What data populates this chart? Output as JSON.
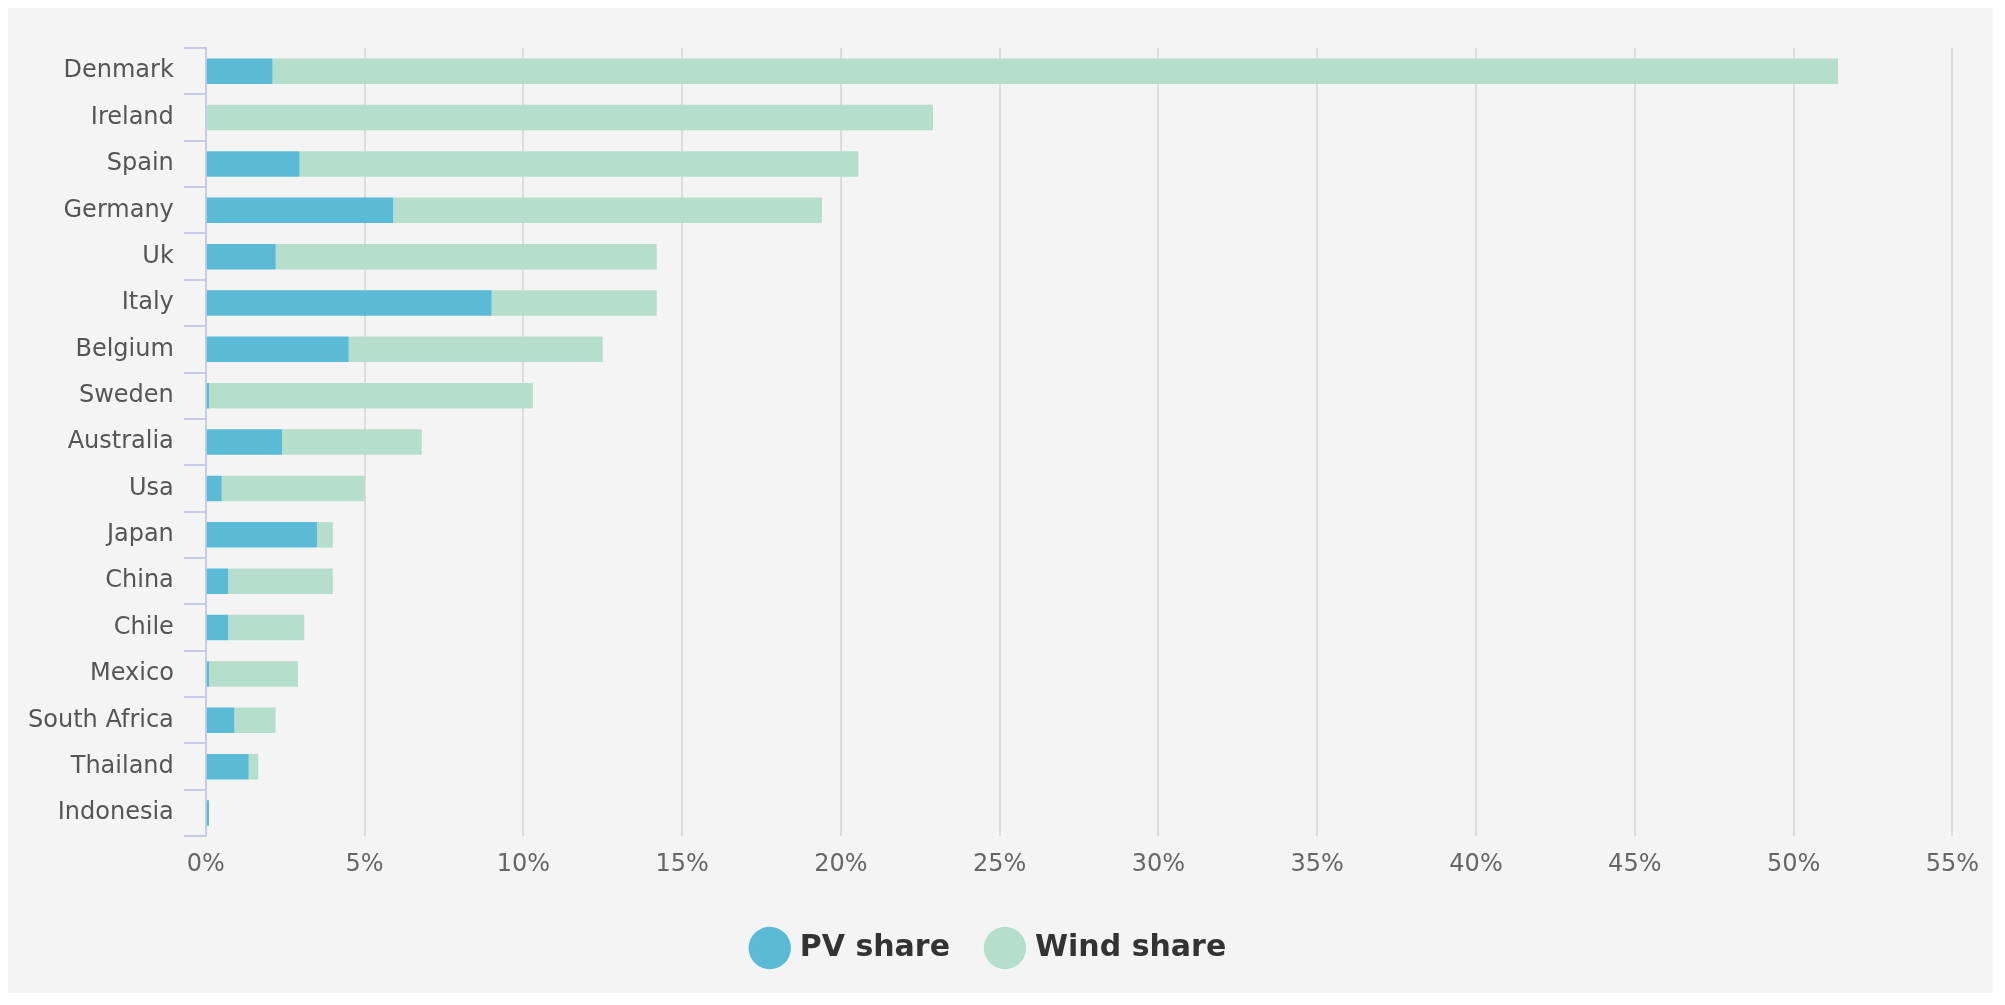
{
  "chart_data": {
    "type": "bar",
    "orientation": "horizontal",
    "stacked": true,
    "categories": [
      "Denmark",
      "Ireland",
      "Spain",
      "Germany",
      "Uk",
      "Italy",
      "Belgium",
      "Sweden",
      "Australia",
      "Usa",
      "Japan",
      "China",
      "Chile",
      "Mexico",
      "South Africa",
      "Thailand",
      "Indonesia"
    ],
    "series": [
      {
        "name": "PV share",
        "color": "#5bbad5",
        "values": [
          2.1,
          0,
          2.95,
          5.9,
          2.2,
          9.0,
          4.5,
          0.1,
          2.4,
          0.5,
          3.5,
          0.7,
          0.7,
          0.1,
          0.9,
          1.35,
          0.1
        ]
      },
      {
        "name": "Wind share",
        "color": "#b5dfcc",
        "values": [
          49.3,
          22.9,
          17.6,
          13.5,
          12.0,
          5.2,
          8.0,
          10.2,
          4.4,
          4.5,
          0.5,
          3.3,
          2.4,
          2.8,
          1.3,
          0.3,
          0
        ]
      }
    ],
    "xlim": [
      0,
      55
    ],
    "xticks": [
      {
        "value": 0,
        "label": "0%"
      },
      {
        "value": 5,
        "label": "5%"
      },
      {
        "value": 10,
        "label": "10%"
      },
      {
        "value": 15,
        "label": "15%"
      },
      {
        "value": 20,
        "label": "20%"
      },
      {
        "value": 25,
        "label": "25%"
      },
      {
        "value": 30,
        "label": "30%"
      },
      {
        "value": 35,
        "label": "35%"
      },
      {
        "value": 40,
        "label": "40%"
      },
      {
        "value": 45,
        "label": "45%"
      },
      {
        "value": 50,
        "label": "50%"
      },
      {
        "value": 55,
        "label": "55%"
      }
    ],
    "grid": "x",
    "legend": "bottom"
  }
}
